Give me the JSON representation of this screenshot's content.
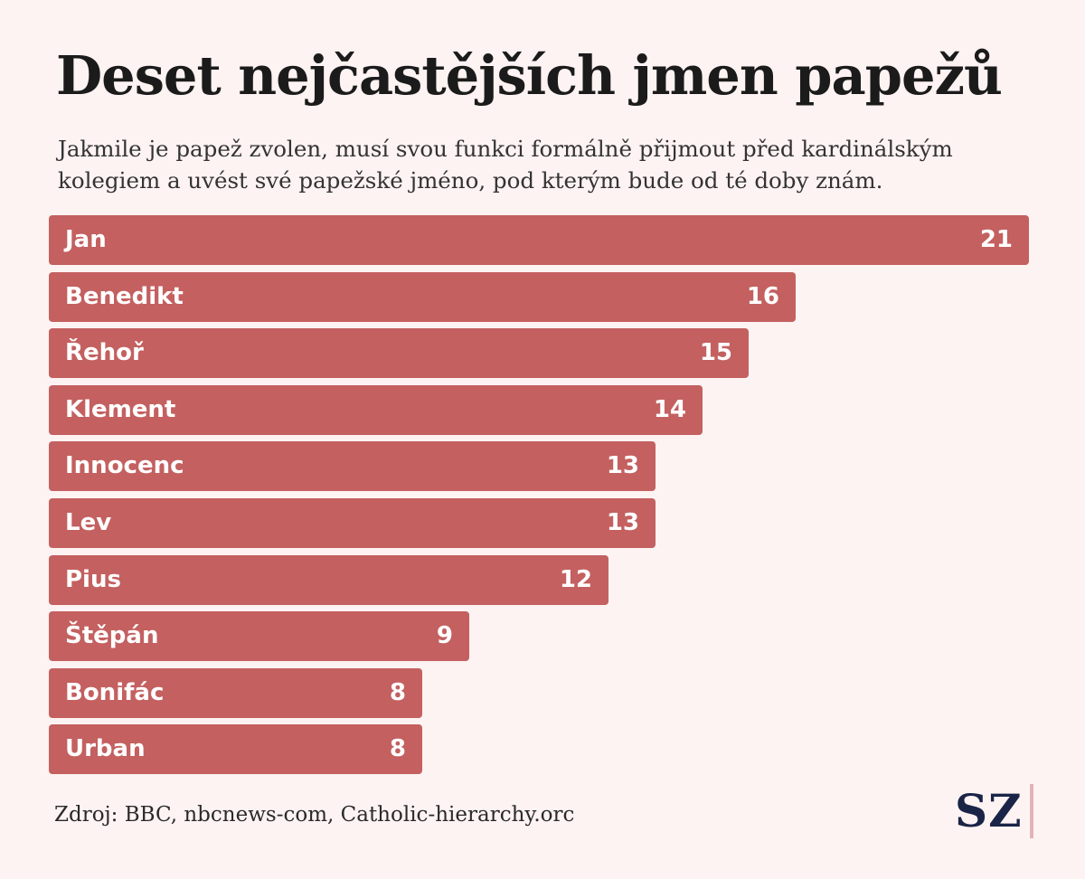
{
  "header": {
    "title": "Deset nejčastějších jmen papežů",
    "subtitle": "Jakmile je papež zvolen, musí svou funkci formálně přijmout před kardinálským kolegiem a uvést své papežské jméno, pod kterým bude od té doby znám."
  },
  "chart_data": {
    "type": "bar",
    "orientation": "horizontal",
    "categories": [
      "Jan",
      "Benedikt",
      "Řehoř",
      "Klement",
      "Innocenc",
      "Lev",
      "Pius",
      "Štěpán",
      "Bonifác",
      "Urban"
    ],
    "values": [
      21,
      16,
      15,
      14,
      13,
      13,
      12,
      9,
      8,
      8
    ],
    "xlim": [
      0,
      21
    ],
    "grid": false,
    "legend": "none",
    "bar_color": "#c46060"
  },
  "footer": {
    "source": "Zdroj: BBC, nbcnews-com, Catholic-hierarchy.orc",
    "logo": "SZ",
    "logo_color": "#1a2447",
    "logo_rule_color": "#e3b3b6"
  }
}
